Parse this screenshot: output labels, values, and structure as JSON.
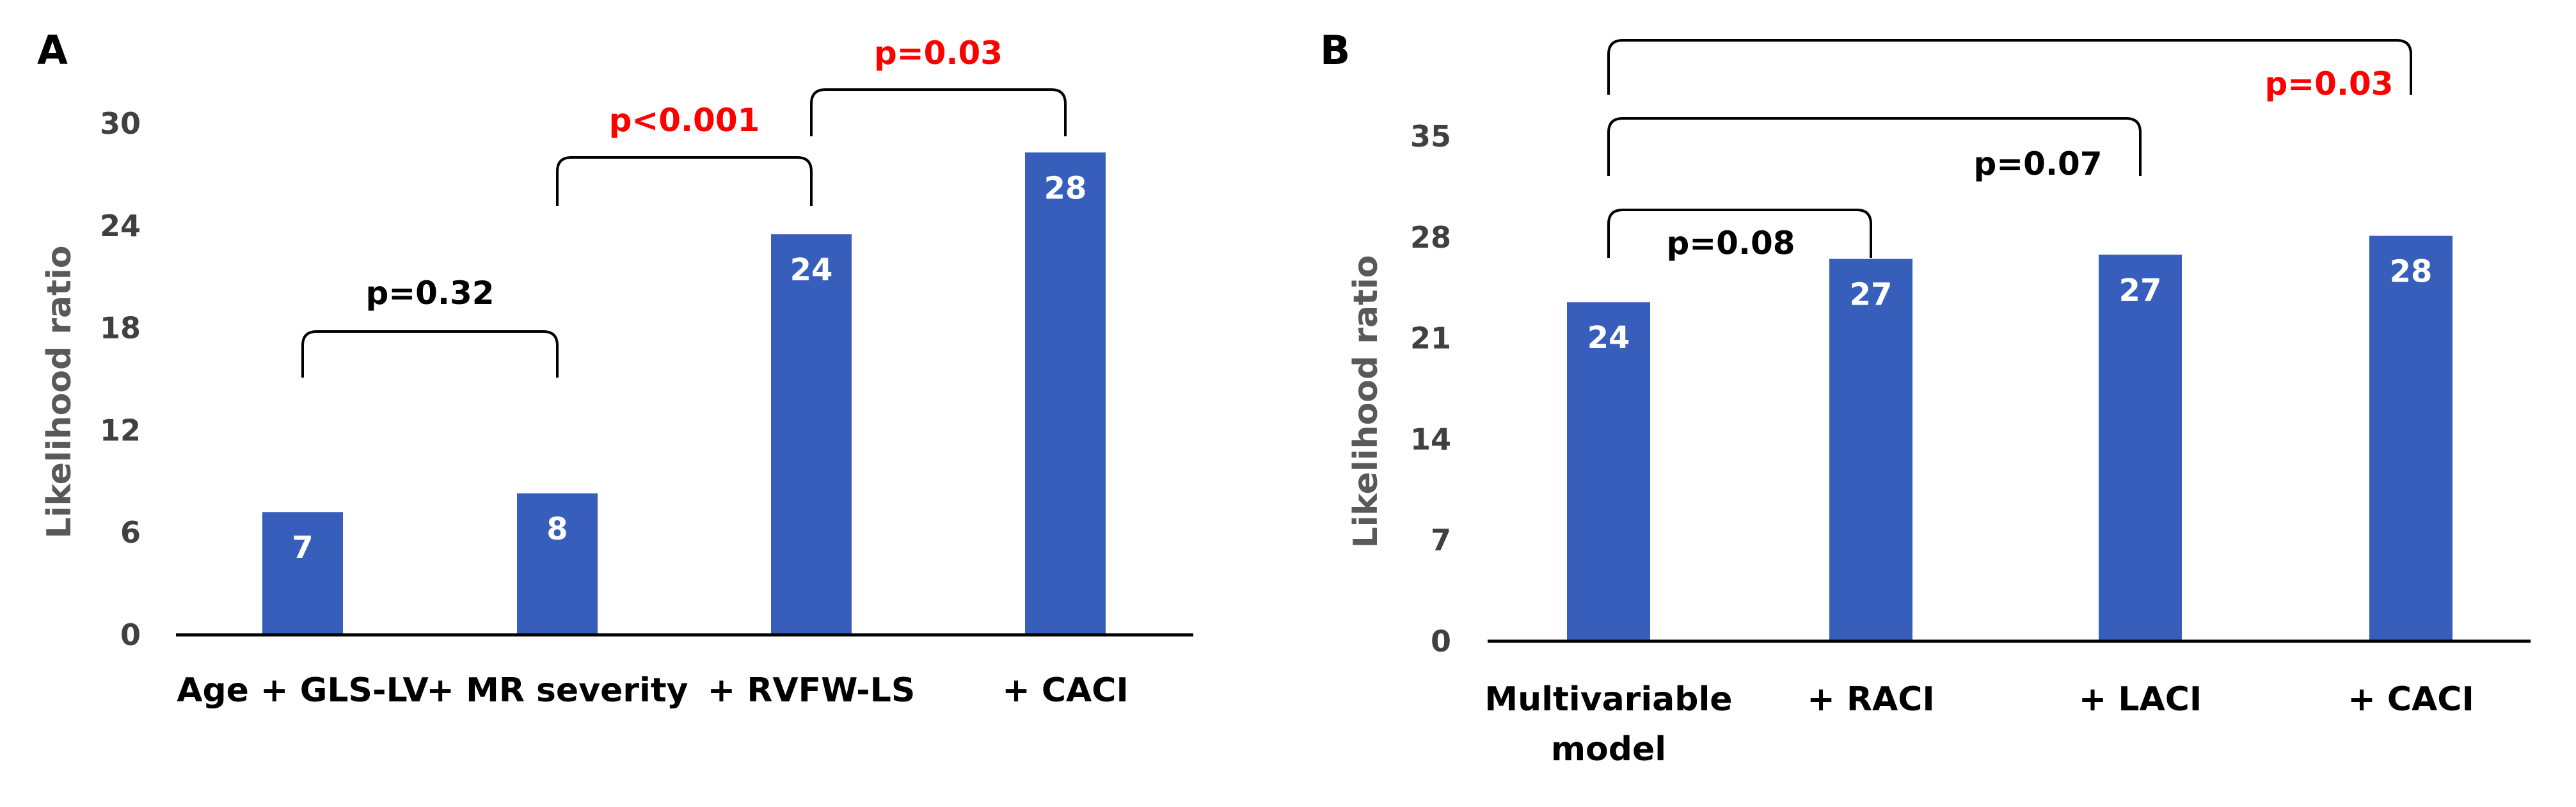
{
  "colors": {
    "bar": "#365EBA",
    "axis": "#000000",
    "significant": "#FF0000",
    "normal": "#000000"
  },
  "chart_data": [
    {
      "panel": "A",
      "type": "bar",
      "ylabel": "Likelihood ratio",
      "ylim": [
        0,
        30
      ],
      "yticks": [
        0,
        6,
        12,
        18,
        24,
        30
      ],
      "categories": [
        [
          "Age + GLS-LV"
        ],
        [
          "+ MR severity"
        ],
        [
          "+ RVFW-LS"
        ],
        [
          "+ CACI"
        ]
      ],
      "values": [
        7.2,
        8.3,
        23.5,
        28.3
      ],
      "value_labels": [
        "7",
        "8",
        "24",
        "28"
      ],
      "comparisons": [
        {
          "from": 0,
          "to": 1,
          "label": "p=0.32",
          "significant": false
        },
        {
          "from": 1,
          "to": 2,
          "label": "p<0.001",
          "significant": true
        },
        {
          "from": 2,
          "to": 3,
          "label": "p=0.03",
          "significant": true
        }
      ]
    },
    {
      "panel": "B",
      "type": "bar",
      "ylabel": "Likelihood ratio",
      "ylim": [
        0,
        35
      ],
      "yticks": [
        0,
        7,
        14,
        21,
        28,
        35
      ],
      "categories": [
        [
          "Multivariable",
          "model"
        ],
        [
          "+ RACI"
        ],
        [
          "+ LACI"
        ],
        [
          "+ CACI"
        ]
      ],
      "values": [
        23.5,
        26.5,
        26.8,
        28.1
      ],
      "value_labels": [
        "24",
        "27",
        "27",
        "28"
      ],
      "comparisons": [
        {
          "from": 0,
          "to": 1,
          "label": "p=0.08",
          "significant": false
        },
        {
          "from": 0,
          "to": 2,
          "label": "p=0.07",
          "significant": false
        },
        {
          "from": 0,
          "to": 3,
          "label": "p=0.03",
          "significant": true
        }
      ]
    }
  ]
}
